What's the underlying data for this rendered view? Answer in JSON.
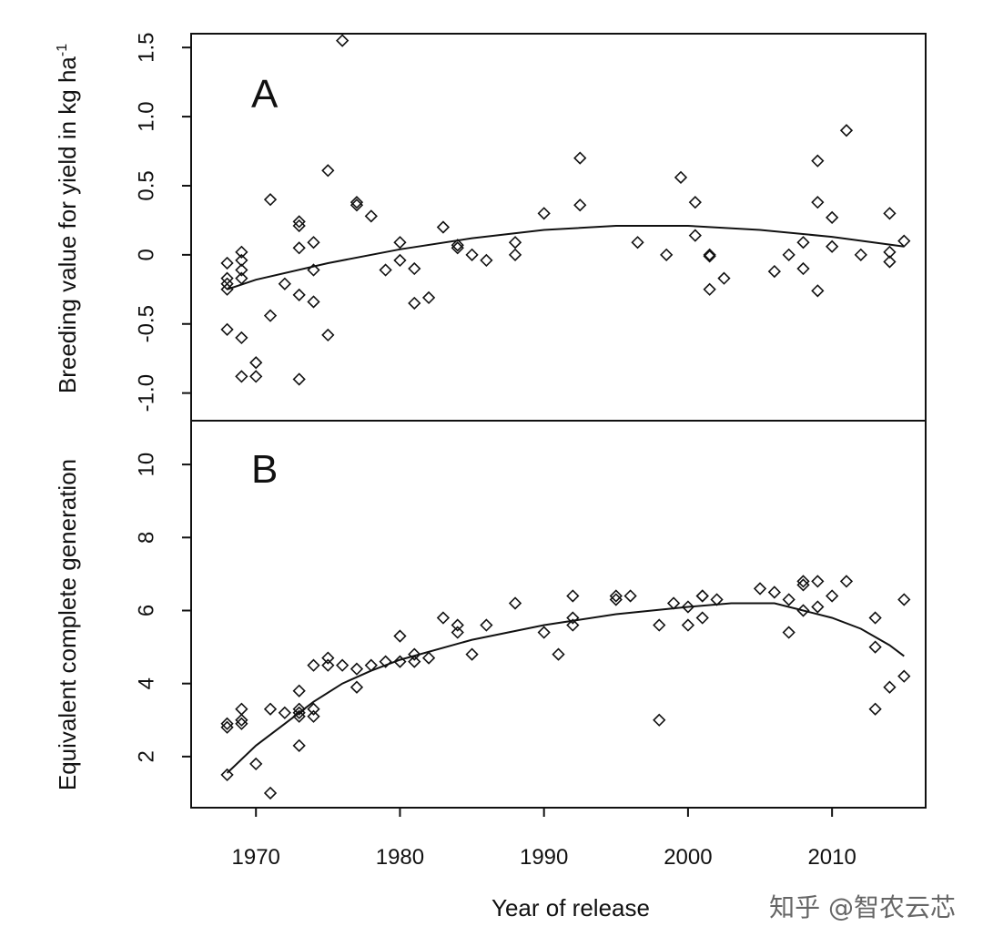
{
  "watermark": "知乎 @智农云芯",
  "chart_data": [
    {
      "type": "scatter",
      "panel_label": "A",
      "xlabel": "Year of release",
      "ylabel": "Breeding value for yield in kg ha",
      "ylabel_superscript": "-1",
      "xlim": [
        1965.5,
        2016.5
      ],
      "ylim": [
        -1.2,
        1.6
      ],
      "yticks": [
        -1.0,
        -0.5,
        0,
        0.5,
        1.0,
        1.5
      ],
      "ytick_labels": [
        "-1.0",
        "-0.5",
        "0",
        "0.5",
        "1.0",
        "1.5"
      ],
      "marker": "diamond",
      "points": [
        [
          1968,
          -0.06
        ],
        [
          1968,
          -0.17
        ],
        [
          1968,
          -0.21
        ],
        [
          1968,
          -0.25
        ],
        [
          1968,
          -0.54
        ],
        [
          1969,
          0.02
        ],
        [
          1969,
          -0.04
        ],
        [
          1969,
          -0.11
        ],
        [
          1969,
          -0.17
        ],
        [
          1969,
          -0.6
        ],
        [
          1969,
          -0.88
        ],
        [
          1970,
          -0.78
        ],
        [
          1970,
          -0.88
        ],
        [
          1971,
          0.4
        ],
        [
          1971,
          -0.44
        ],
        [
          1972,
          -0.21
        ],
        [
          1973,
          0.24
        ],
        [
          1973,
          0.21
        ],
        [
          1973,
          0.05
        ],
        [
          1973,
          -0.29
        ],
        [
          1973,
          -0.9
        ],
        [
          1974,
          0.09
        ],
        [
          1974,
          -0.11
        ],
        [
          1974,
          -0.34
        ],
        [
          1975,
          0.61
        ],
        [
          1975,
          -0.58
        ],
        [
          1976,
          1.55
        ],
        [
          1977,
          0.38
        ],
        [
          1977,
          0.36
        ],
        [
          1978,
          0.28
        ],
        [
          1979,
          -0.11
        ],
        [
          1980,
          0.09
        ],
        [
          1980,
          -0.04
        ],
        [
          1981,
          -0.1
        ],
        [
          1981,
          -0.35
        ],
        [
          1982,
          -0.31
        ],
        [
          1983,
          0.2
        ],
        [
          1984,
          0.07
        ],
        [
          1984,
          0.05
        ],
        [
          1985,
          0.0
        ],
        [
          1986,
          -0.04
        ],
        [
          1988,
          0.09
        ],
        [
          1988,
          0.0
        ],
        [
          1990,
          0.3
        ],
        [
          1992.5,
          0.7
        ],
        [
          1992.5,
          0.36
        ],
        [
          1996.5,
          0.09
        ],
        [
          1998.5,
          0.0
        ],
        [
          1999.5,
          0.56
        ],
        [
          2000.5,
          0.38
        ],
        [
          2000.5,
          0.14
        ],
        [
          2001.5,
          0.0
        ],
        [
          2001.5,
          -0.01
        ],
        [
          2001.5,
          -0.25
        ],
        [
          2002.5,
          -0.17
        ],
        [
          2006,
          -0.12
        ],
        [
          2007,
          0.0
        ],
        [
          2008,
          0.09
        ],
        [
          2008,
          -0.1
        ],
        [
          2009,
          0.68
        ],
        [
          2009,
          0.38
        ],
        [
          2009,
          -0.26
        ],
        [
          2010,
          0.27
        ],
        [
          2010,
          0.06
        ],
        [
          2011,
          0.9
        ],
        [
          2012,
          0.0
        ],
        [
          2014,
          0.3
        ],
        [
          2014,
          0.02
        ],
        [
          2014,
          -0.05
        ],
        [
          2015,
          0.1
        ]
      ],
      "fit_curve": [
        [
          1968,
          -0.25
        ],
        [
          1970,
          -0.18
        ],
        [
          1975,
          -0.06
        ],
        [
          1980,
          0.04
        ],
        [
          1985,
          0.12
        ],
        [
          1990,
          0.18
        ],
        [
          1995,
          0.21
        ],
        [
          2000,
          0.21
        ],
        [
          2005,
          0.18
        ],
        [
          2010,
          0.13
        ],
        [
          2015,
          0.06
        ]
      ]
    },
    {
      "type": "scatter",
      "panel_label": "B",
      "xlabel": "Year of release",
      "ylabel": "Equivalent complete generation",
      "xlim": [
        1965.5,
        2016.5
      ],
      "ylim": [
        0.6,
        11.2
      ],
      "xticks": [
        1970,
        1980,
        1990,
        2000,
        2010
      ],
      "xtick_labels": [
        "1970",
        "1980",
        "1990",
        "2000",
        "2010"
      ],
      "yticks": [
        2,
        4,
        6,
        8,
        10
      ],
      "ytick_labels": [
        "2",
        "4",
        "6",
        "8",
        "10"
      ],
      "marker": "diamond",
      "points": [
        [
          1968,
          2.9
        ],
        [
          1968,
          2.8
        ],
        [
          1968,
          1.5
        ],
        [
          1969,
          3.3
        ],
        [
          1969,
          3.0
        ],
        [
          1969,
          2.9
        ],
        [
          1970,
          1.8
        ],
        [
          1971,
          3.3
        ],
        [
          1971,
          1.0
        ],
        [
          1972,
          3.2
        ],
        [
          1973,
          3.8
        ],
        [
          1973,
          3.3
        ],
        [
          1973,
          3.2
        ],
        [
          1973,
          3.1
        ],
        [
          1973,
          2.3
        ],
        [
          1974,
          4.5
        ],
        [
          1974,
          3.3
        ],
        [
          1974,
          3.1
        ],
        [
          1975,
          4.7
        ],
        [
          1975,
          4.5
        ],
        [
          1976,
          4.5
        ],
        [
          1977,
          4.4
        ],
        [
          1977,
          3.9
        ],
        [
          1978,
          4.5
        ],
        [
          1979,
          4.6
        ],
        [
          1980,
          5.3
        ],
        [
          1980,
          4.6
        ],
        [
          1981,
          4.8
        ],
        [
          1981,
          4.6
        ],
        [
          1982,
          4.7
        ],
        [
          1983,
          5.8
        ],
        [
          1984,
          5.6
        ],
        [
          1984,
          5.4
        ],
        [
          1985,
          4.8
        ],
        [
          1986,
          5.6
        ],
        [
          1988,
          6.2
        ],
        [
          1990,
          5.4
        ],
        [
          1991,
          4.8
        ],
        [
          1992,
          6.4
        ],
        [
          1992,
          5.8
        ],
        [
          1992,
          5.6
        ],
        [
          1995,
          6.4
        ],
        [
          1995,
          6.3
        ],
        [
          1996,
          6.4
        ],
        [
          1998,
          5.6
        ],
        [
          1998,
          3.0
        ],
        [
          1999,
          6.2
        ],
        [
          2000,
          6.1
        ],
        [
          2000,
          5.6
        ],
        [
          2001,
          6.4
        ],
        [
          2001,
          6.4
        ],
        [
          2001,
          5.8
        ],
        [
          2002,
          6.3
        ],
        [
          2005,
          6.6
        ],
        [
          2006,
          6.5
        ],
        [
          2007,
          6.3
        ],
        [
          2007,
          5.4
        ],
        [
          2008,
          6.8
        ],
        [
          2008,
          6.7
        ],
        [
          2008,
          6.0
        ],
        [
          2009,
          6.8
        ],
        [
          2009,
          6.1
        ],
        [
          2010,
          6.4
        ],
        [
          2011,
          6.8
        ],
        [
          2013,
          5.8
        ],
        [
          2013,
          5.0
        ],
        [
          2013,
          3.3
        ],
        [
          2014,
          3.9
        ],
        [
          2015,
          6.3
        ],
        [
          2015,
          4.2
        ]
      ],
      "fit_curve": [
        [
          1968,
          1.55
        ],
        [
          1970,
          2.3
        ],
        [
          1972,
          2.9
        ],
        [
          1974,
          3.5
        ],
        [
          1976,
          4.0
        ],
        [
          1978,
          4.35
        ],
        [
          1980,
          4.65
        ],
        [
          1985,
          5.2
        ],
        [
          1990,
          5.6
        ],
        [
          1995,
          5.9
        ],
        [
          2000,
          6.1
        ],
        [
          2003,
          6.2
        ],
        [
          2005,
          6.2
        ],
        [
          2006,
          6.2
        ],
        [
          2008,
          6.0
        ],
        [
          2010,
          5.8
        ],
        [
          2012,
          5.5
        ],
        [
          2014,
          5.05
        ],
        [
          2015,
          4.75
        ]
      ]
    }
  ]
}
